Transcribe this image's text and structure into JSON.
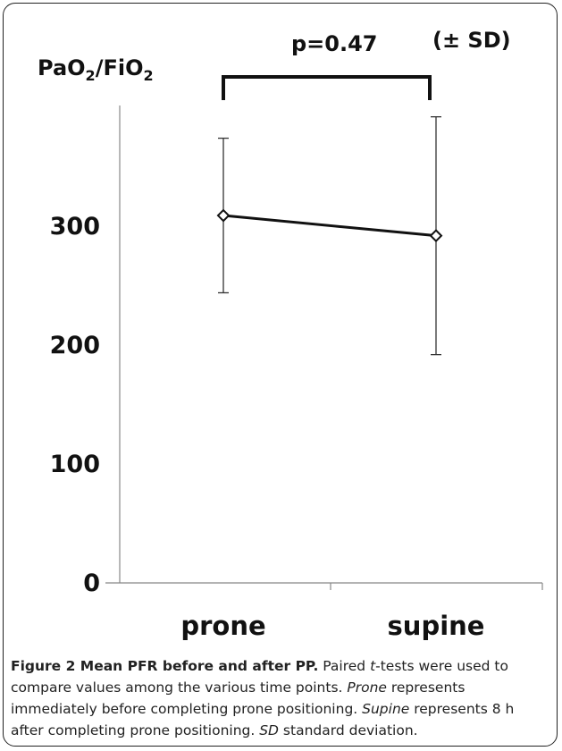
{
  "chart_data": {
    "type": "line",
    "ylabel_main": "PaO",
    "ylabel_sub1": "2",
    "ylabel_mid": "/FiO",
    "ylabel_sub2": "2",
    "annotation_p": "p=0.47",
    "annotation_sd": "(± SD)",
    "categories": [
      "prone",
      "supine"
    ],
    "series": [
      {
        "values": [
          309,
          292
        ],
        "sd": [
          65,
          100
        ]
      }
    ],
    "y_ticks": [
      0,
      100,
      200,
      300
    ],
    "ylim": [
      0,
      400
    ]
  },
  "caption": {
    "figure_label": "Figure 2 Mean PFR before and after PP.",
    "t1": " Paired ",
    "t_italic": "t",
    "t2": "-tests were used to compare values among the various time points. ",
    "prone_word": "Prone",
    "t3": " represents immediately before completing prone positioning. ",
    "supine_word": "Supine",
    "t4": " represents 8 h after completing prone positioning. ",
    "sd_word": "SD",
    "t5": " standard deviation."
  }
}
